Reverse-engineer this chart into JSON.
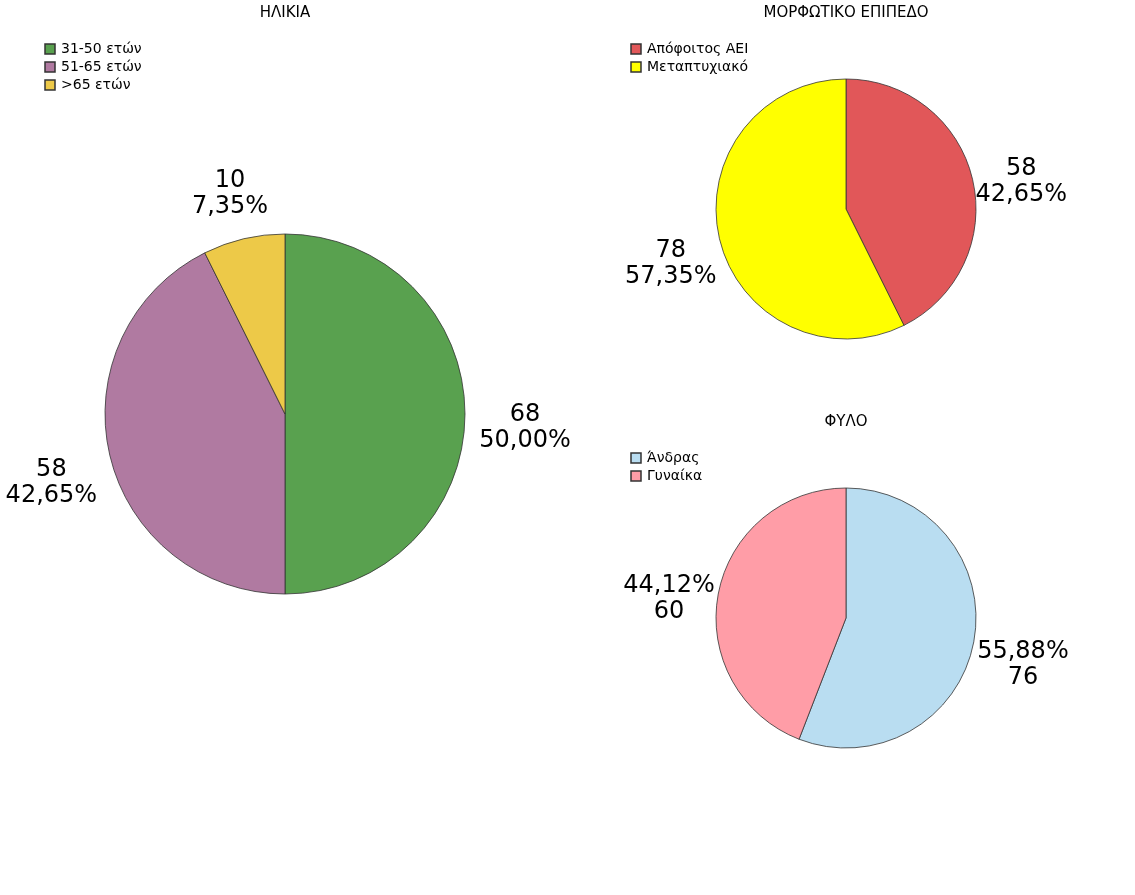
{
  "chart_data": [
    {
      "type": "pie",
      "title": "ΗΛΙΚΙΑ",
      "categories": [
        "31-50 ετών",
        "51-65 ετών",
        ">65 ετών"
      ],
      "values": [
        68,
        58,
        10
      ],
      "colors": [
        "#59a14f",
        "#b07aa1",
        "#edc948"
      ],
      "value_labels": [
        "68\n50,00%",
        "58\n42,65%",
        "10\n7,35%"
      ],
      "legend": "top left"
    },
    {
      "type": "pie",
      "title": "ΜΟΡΦΩΤΙΚΟ ΕΠΙΠΕΔΟ",
      "categories": [
        "Απόφοιτος ΑΕΙ",
        "Μεταπτυχιακό"
      ],
      "values": [
        58,
        78
      ],
      "colors": [
        "#e15759",
        "#ffff00"
      ],
      "value_labels": [
        "58\n42,65%",
        "78\n57,35%"
      ],
      "legend": "top left"
    },
    {
      "type": "pie",
      "title": "ΦΥΛΟ",
      "categories": [
        "Άνδρας",
        "Γυναίκα"
      ],
      "values": [
        76,
        60
      ],
      "colors": [
        "#b9ddf1",
        "#ff9da7"
      ],
      "value_labels": [
        "55,88%\n76",
        "44,12%\n60"
      ],
      "legend": "top left"
    }
  ]
}
